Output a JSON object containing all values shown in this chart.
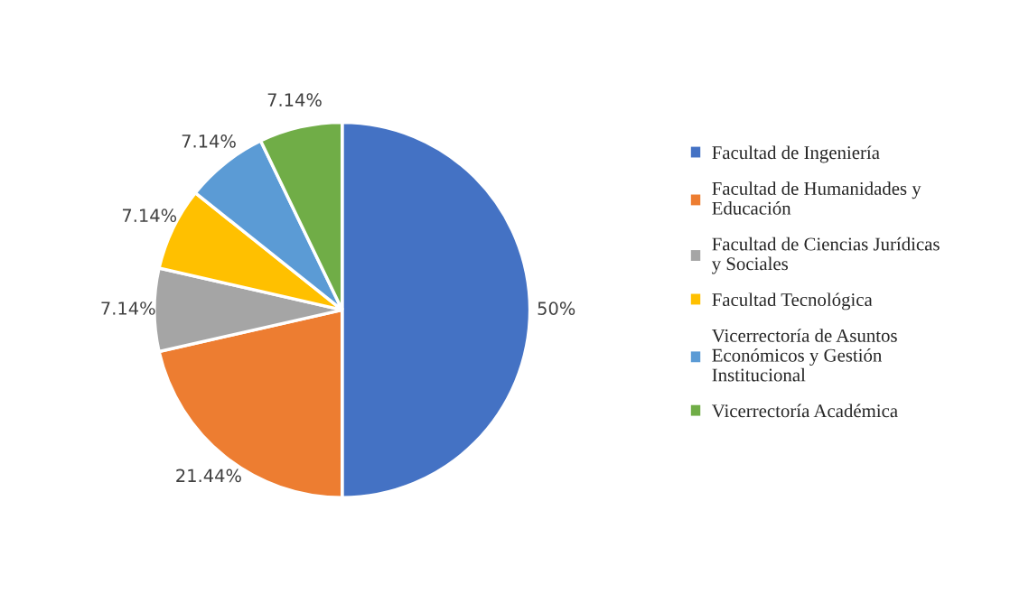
{
  "chart_data": {
    "type": "pie",
    "categories": [
      "Facultad de Ingeniería",
      "Facultad de Humanidades y Educación",
      "Facultad de Ciencias Jurídicas y Sociales",
      "Facultad Tecnológica",
      "Vicerrectoría de Asuntos Económicos y Gestión Institucional",
      "Vicerrectoría Académica"
    ],
    "values": [
      50,
      21.44,
      7.14,
      7.14,
      7.14,
      7.14
    ],
    "value_labels": [
      "50%",
      "21.44%",
      "7.14%",
      "7.14%",
      "7.14%",
      "7.14%"
    ],
    "colors": [
      "#4472c4",
      "#ed7d31",
      "#a5a5a5",
      "#ffc000",
      "#5b9bd5",
      "#70ad47"
    ],
    "legend": "right"
  }
}
